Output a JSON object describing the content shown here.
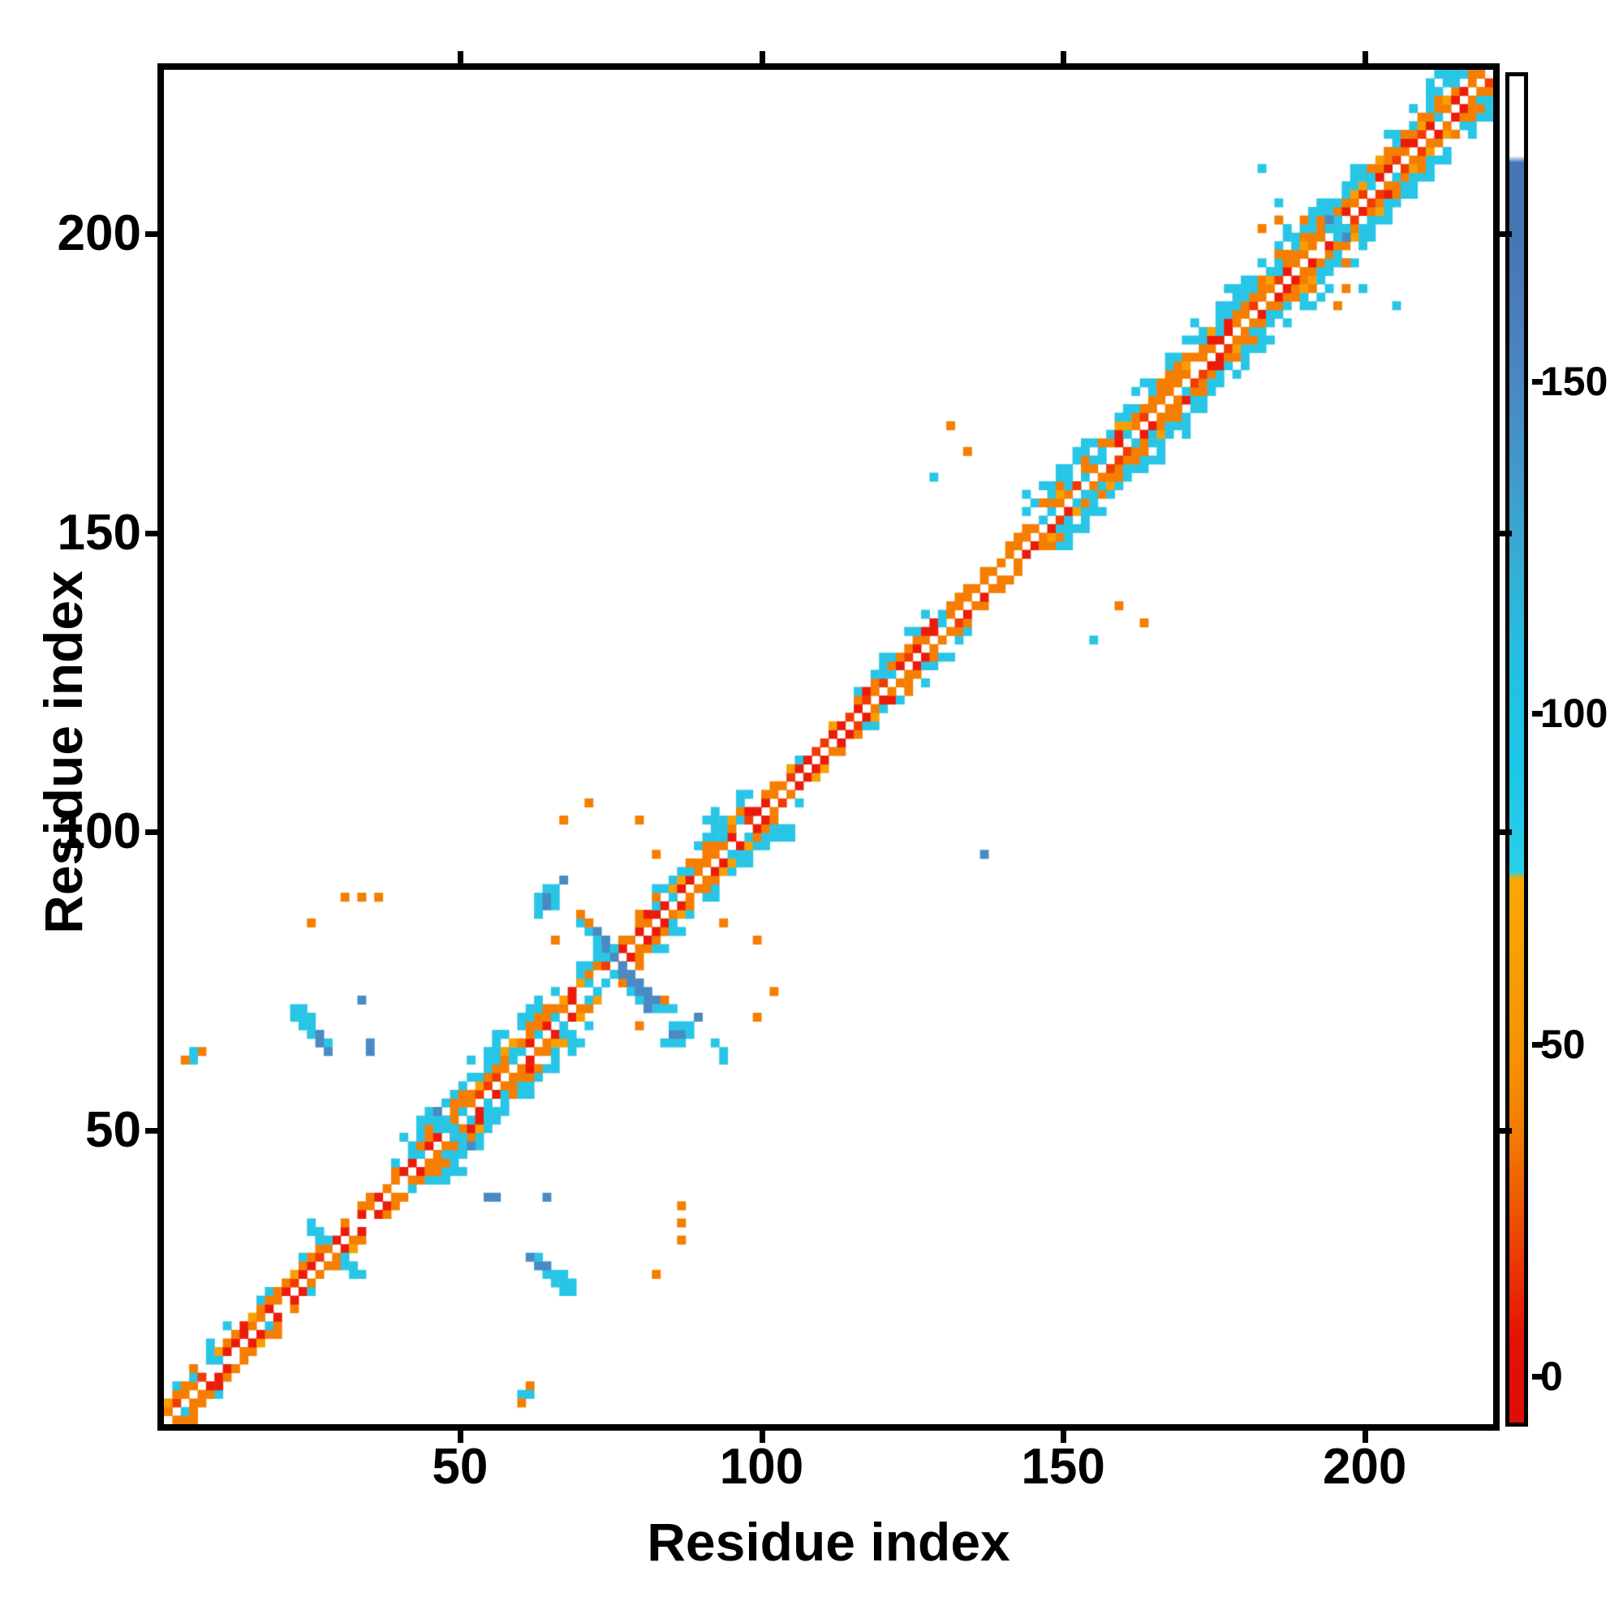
{
  "figure": {
    "background": "#ffffff"
  },
  "chart_data": {
    "type": "heatmap",
    "title": "",
    "xlabel": "Residue index",
    "ylabel": "Residue index",
    "x_range": [
      0.9,
      221.3
    ],
    "y_range": [
      0.8,
      227.5
    ],
    "x_ticks": [
      50,
      100,
      150,
      200
    ],
    "y_ticks": [
      50,
      100,
      150,
      200
    ],
    "grid_n": 158,
    "residues_per_cell": 1.4,
    "pattern_seed": 11,
    "grid_on": false,
    "legend": "colorbar-right",
    "description": "Protein residue-residue contact map: white main diagonal flanked by red/orange short-range contacts and cyan/blue medium-range flanks; sparse long-range off-diagonal contacts incl. an antiparallel (anti-diagonal) crossing near residue 75.",
    "palette": {
      "red": "#ea1c09",
      "red2": "#f03c03",
      "orange": "#f57e00",
      "orange2": "#f9a000",
      "cyan": "#29c5e6",
      "cyan2": "#55d2ea",
      "steel": "#4a8ac2",
      "steel2": "#4377b6",
      "white": "#ffffff"
    },
    "band_classes": {
      "thin": {
        "d1": [
          [
            "red",
            0.45
          ],
          [
            "red2",
            0.22
          ],
          [
            "orange",
            0.26
          ],
          [
            "skip",
            0.07
          ]
        ],
        "d2": [
          [
            "orange",
            0.3
          ],
          [
            "orange2",
            0.08
          ],
          [
            "cyan",
            0.05
          ],
          [
            "skip",
            0.57
          ]
        ],
        "d3": [
          [
            "cyan",
            0.08
          ],
          [
            "skip",
            0.92
          ]
        ]
      },
      "thino": {
        "d1": [
          [
            "orange",
            0.48
          ],
          [
            "orange2",
            0.25
          ],
          [
            "red",
            0.2
          ],
          [
            "skip",
            0.07
          ]
        ],
        "d2": [
          [
            "orange",
            0.42
          ],
          [
            "orange2",
            0.12
          ],
          [
            "skip",
            0.46
          ]
        ],
        "d3": [
          [
            "orange",
            0.05
          ],
          [
            "skip",
            0.95
          ]
        ]
      },
      "med": {
        "d1": [
          [
            "red",
            0.3
          ],
          [
            "red2",
            0.15
          ],
          [
            "orange",
            0.3
          ],
          [
            "cyan",
            0.18
          ],
          [
            "skip",
            0.07
          ]
        ],
        "d2": [
          [
            "orange",
            0.5
          ],
          [
            "orange2",
            0.14
          ],
          [
            "red",
            0.06
          ],
          [
            "cyan",
            0.14
          ],
          [
            "skip",
            0.16
          ]
        ],
        "d3": [
          [
            "cyan",
            0.38
          ],
          [
            "orange",
            0.18
          ],
          [
            "skip",
            0.44
          ]
        ],
        "d4": [
          [
            "cyan",
            0.15
          ],
          [
            "skip",
            0.85
          ]
        ]
      },
      "wide": {
        "d1": [
          [
            "red",
            0.32
          ],
          [
            "red2",
            0.18
          ],
          [
            "orange",
            0.38
          ],
          [
            "cyan",
            0.08
          ],
          [
            "skip",
            0.04
          ]
        ],
        "d2": [
          [
            "orange",
            0.58
          ],
          [
            "orange2",
            0.16
          ],
          [
            "red",
            0.08
          ],
          [
            "cyan",
            0.1
          ],
          [
            "skip",
            0.08
          ]
        ],
        "d3": [
          [
            "orange",
            0.28
          ],
          [
            "cyan",
            0.5
          ],
          [
            "orange2",
            0.08
          ],
          [
            "skip",
            0.14
          ]
        ],
        "d4": [
          [
            "cyan",
            0.72
          ],
          [
            "skip",
            0.28
          ]
        ],
        "d5": [
          [
            "cyan",
            0.42
          ],
          [
            "skip",
            0.58
          ]
        ],
        "d6": [
          [
            "cyan",
            0.12
          ],
          [
            "skip",
            0.88
          ]
        ]
      }
    },
    "band_segments": [
      [
        0,
        12,
        "med"
      ],
      [
        12,
        28,
        "thin"
      ],
      [
        28,
        45,
        "wide"
      ],
      [
        45,
        64,
        "med"
      ],
      [
        64,
        70,
        "wide"
      ],
      [
        70,
        82,
        "thin"
      ],
      [
        82,
        94,
        "med"
      ],
      [
        94,
        102,
        "thino"
      ],
      [
        102,
        158,
        "wide"
      ]
    ],
    "features": [
      {
        "name": "anti-diagonal-crossing-streak",
        "mirror": false,
        "cells": [
          [
            49,
            58,
            "cyan"
          ],
          [
            50,
            57,
            "cyan"
          ],
          [
            50,
            58,
            "orange"
          ],
          [
            51,
            57,
            "steel"
          ],
          [
            51,
            56,
            "cyan"
          ],
          [
            52,
            56,
            "steel"
          ],
          [
            52,
            55,
            "steel"
          ],
          [
            51,
            55,
            "cyan"
          ],
          [
            53,
            55,
            "cyan"
          ],
          [
            53,
            54,
            "steel"
          ],
          [
            52,
            54,
            "cyan"
          ],
          [
            54,
            53,
            "steel"
          ],
          [
            55,
            52,
            "steel"
          ],
          [
            54,
            52,
            "steel"
          ],
          [
            55,
            51,
            "steel"
          ],
          [
            56,
            51,
            "steel"
          ],
          [
            55,
            50,
            "cyan"
          ],
          [
            56,
            50,
            "steel"
          ],
          [
            57,
            50,
            "steel"
          ],
          [
            57,
            49,
            "steel"
          ],
          [
            56,
            49,
            "cyan"
          ],
          [
            58,
            49,
            "steel"
          ],
          [
            58,
            48,
            "cyan"
          ],
          [
            57,
            48,
            "steel"
          ],
          [
            59,
            48,
            "cyan"
          ],
          [
            60,
            48,
            "cyan"
          ]
        ]
      },
      {
        "name": "crossing-arm-end-blob",
        "mirror": true,
        "cells": [
          [
            44,
            60,
            "cyan"
          ],
          [
            45,
            60,
            "steel"
          ],
          [
            46,
            60,
            "cyan"
          ],
          [
            44,
            61,
            "cyan"
          ],
          [
            45,
            61,
            "steel"
          ],
          [
            46,
            61,
            "cyan"
          ],
          [
            45,
            62,
            "cyan"
          ],
          [
            44,
            59,
            "cyan"
          ],
          [
            46,
            62,
            "cyan"
          ],
          [
            47,
            63,
            "steel"
          ]
        ]
      },
      {
        "name": "crossing-orange-satellites",
        "mirror": true,
        "cells": [
          [
            49,
            59,
            "orange"
          ],
          [
            46,
            56,
            "orange"
          ],
          [
            50,
            72,
            "orange"
          ],
          [
            47,
            70,
            "orange"
          ],
          [
            56,
            70,
            "orange"
          ],
          [
            58,
            66,
            "orange"
          ]
        ]
      },
      {
        "name": "comma-blob",
        "mirror": true,
        "cells": [
          [
            15,
            48,
            "cyan"
          ],
          [
            16,
            48,
            "cyan"
          ],
          [
            15,
            47,
            "cyan"
          ],
          [
            16,
            47,
            "cyan"
          ],
          [
            17,
            47,
            "cyan"
          ],
          [
            16,
            46,
            "cyan"
          ],
          [
            17,
            46,
            "cyan"
          ],
          [
            17,
            45,
            "cyan"
          ],
          [
            18,
            45,
            "steel"
          ],
          [
            18,
            44,
            "steel"
          ],
          [
            19,
            44,
            "cyan"
          ],
          [
            19,
            43,
            "steel"
          ]
        ]
      },
      {
        "name": "orange-dot-row",
        "mirror": true,
        "cells": [
          [
            21,
            61,
            "orange"
          ],
          [
            23,
            61,
            "orange"
          ],
          [
            25,
            61,
            "orange"
          ],
          [
            17,
            58,
            "orange"
          ],
          [
            4,
            43,
            "orange"
          ]
        ]
      },
      {
        "name": "steel-singles",
        "mirror": false,
        "cells": [
          [
            23,
            49,
            "steel"
          ],
          [
            24,
            44,
            "steel"
          ],
          [
            24,
            43,
            "steel"
          ],
          [
            38,
            26,
            "steel"
          ],
          [
            39,
            26,
            "steel"
          ],
          [
            45,
            26,
            "steel"
          ],
          [
            97,
            66,
            "steel"
          ]
        ]
      },
      {
        "name": "cyan-l-below-band",
        "mirror": false,
        "cells": [
          [
            65,
            44,
            "cyan"
          ],
          [
            66,
            43,
            "cyan"
          ],
          [
            66,
            42,
            "cyan"
          ]
        ]
      },
      {
        "name": "bottom-edge-cluster",
        "mirror": true,
        "cells": [
          [
            42,
            3,
            "cyan"
          ],
          [
            43,
            3,
            "cyan"
          ],
          [
            42,
            2,
            "orange"
          ]
        ]
      },
      {
        "name": "band-limb-upper",
        "mirror": true,
        "cells": [
          [
            31,
            35,
            "cyan"
          ],
          [
            32,
            35,
            "cyan"
          ],
          [
            32,
            36,
            "steel"
          ],
          [
            33,
            35,
            "cyan"
          ],
          [
            33,
            34,
            "cyan"
          ],
          [
            34,
            34,
            "cyan"
          ]
        ]
      },
      {
        "name": "band-limb-lower",
        "mirror": true,
        "cells": [
          [
            21,
            18,
            "cyan"
          ],
          [
            22,
            18,
            "cyan"
          ],
          [
            22,
            17,
            "cyan"
          ],
          [
            23,
            17,
            "cyan"
          ],
          [
            21,
            19,
            "cyan"
          ]
        ]
      },
      {
        "name": "mid-upper-dots",
        "mirror": true,
        "cells": [
          [
            93,
            116,
            "orange"
          ],
          [
            95,
            113,
            "orange"
          ],
          [
            91,
            110,
            "cyan"
          ]
        ]
      },
      {
        "name": "upper-right-satellite-dots",
        "mirror": true,
        "cells": [
          [
            132,
            142,
            "cyan"
          ],
          [
            132,
            140,
            "orange"
          ],
          [
            135,
            140,
            "orange"
          ],
          [
            132,
            136,
            "orange"
          ],
          [
            139,
            130,
            "orange"
          ],
          [
            130,
            146,
            "cyan"
          ]
        ]
      },
      {
        "name": "upper-right-band-pinch",
        "mirror": true,
        "cells": [
          [
            138,
            140,
            "steel"
          ],
          [
            139,
            140,
            "cyan"
          ],
          [
            139,
            139,
            "cyan"
          ],
          [
            140,
            138,
            "steel"
          ],
          [
            138,
            139,
            "cyan"
          ]
        ]
      }
    ]
  },
  "colorbar": {
    "vmin": -7,
    "vmax": 196,
    "ticks": [
      0,
      50,
      100,
      150
    ],
    "stops": [
      [
        -7,
        "#dd0d07"
      ],
      [
        6,
        "#e41306"
      ],
      [
        16,
        "#e93504"
      ],
      [
        26,
        "#ee5803"
      ],
      [
        36,
        "#f27a01"
      ],
      [
        48,
        "#f69200"
      ],
      [
        75,
        "#f9a800"
      ],
      [
        76,
        "#28cfe9"
      ],
      [
        92,
        "#1cc6e6"
      ],
      [
        108,
        "#25bfe2"
      ],
      [
        122,
        "#35add5"
      ],
      [
        136,
        "#4299c9"
      ],
      [
        150,
        "#4a87c0"
      ],
      [
        163,
        "#4a7bb8"
      ],
      [
        173,
        "#4576b4"
      ],
      [
        183,
        "#4576b4"
      ],
      [
        184,
        "#ffffff"
      ],
      [
        196,
        "#ffffff"
      ]
    ]
  }
}
